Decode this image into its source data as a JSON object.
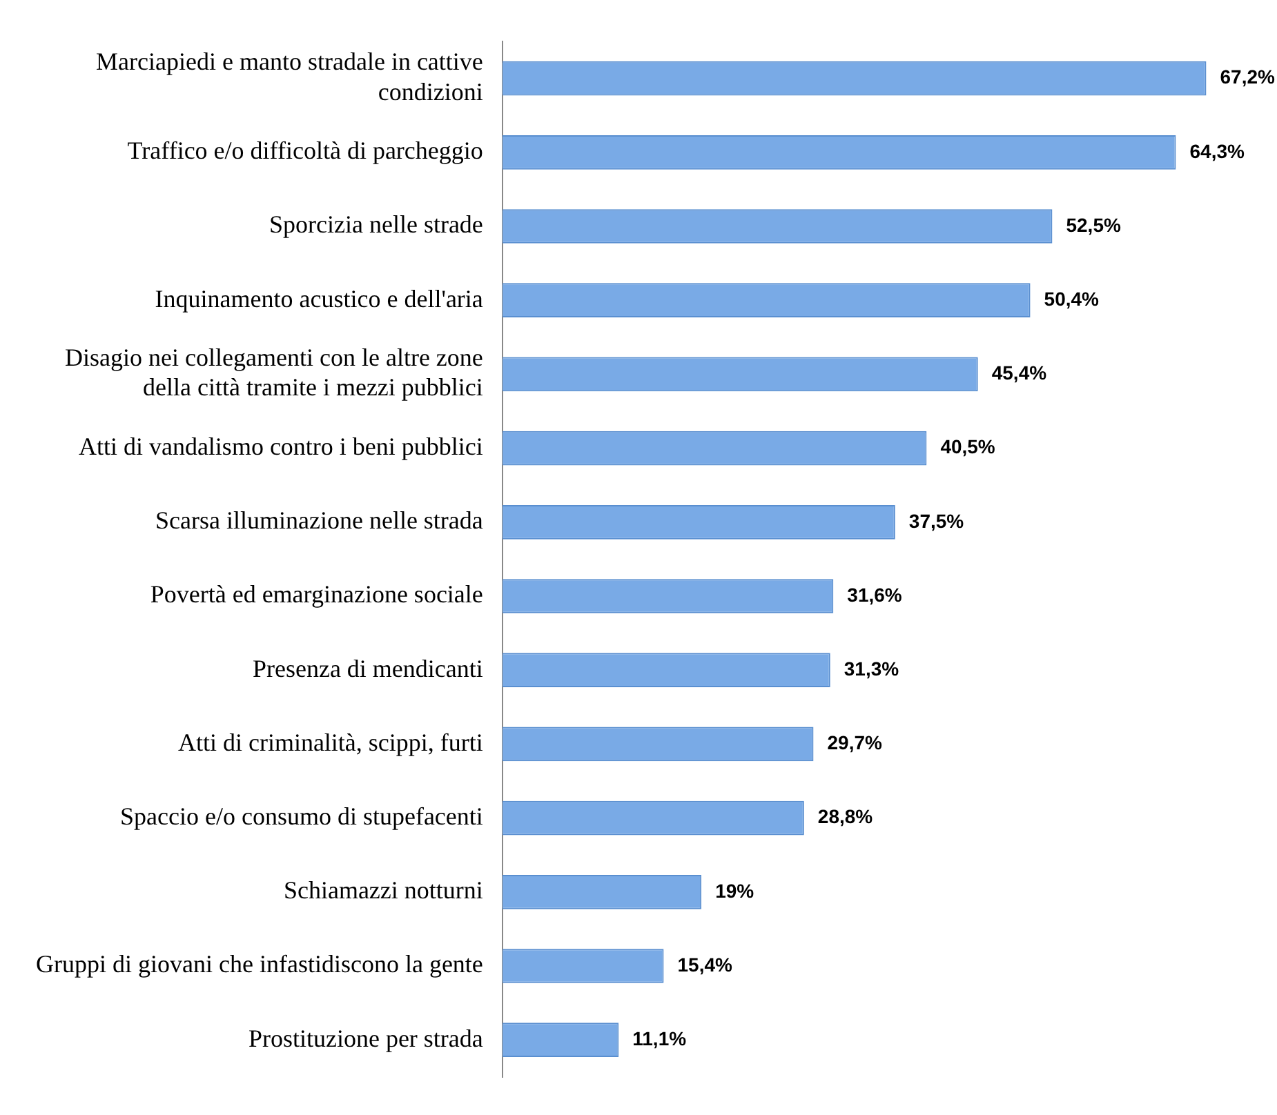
{
  "chart_data": {
    "type": "bar",
    "orientation": "horizontal",
    "categories": [
      "Marciapiedi e manto stradale in cattive condizioni",
      "Traffico e/o difficoltà di parcheggio",
      "Sporcizia nelle strade",
      "Inquinamento acustico e dell'aria",
      "Disagio nei collegamenti con le altre zone della città tramite i mezzi pubblici",
      "Atti di vandalismo contro i beni pubblici",
      "Scarsa illuminazione nelle strada",
      "Povertà ed emarginazione sociale",
      "Presenza di mendicanti",
      "Atti di criminalità, scippi, furti",
      "Spaccio e/o consumo di stupefacenti",
      "Schiamazzi notturni",
      "Gruppi di giovani che infastidiscono la gente",
      "Prostituzione per strada"
    ],
    "values": [
      67.2,
      64.3,
      52.5,
      50.4,
      45.4,
      40.5,
      37.5,
      31.6,
      31.3,
      29.7,
      28.8,
      19,
      15.4,
      11.1
    ],
    "value_labels": [
      "67,2%",
      "64,3%",
      "52,5%",
      "50,4%",
      "45,4%",
      "40,5%",
      "37,5%",
      "31,6%",
      "31,3%",
      "29,7%",
      "28,8%",
      "19%",
      "15,4%",
      "11,1%"
    ],
    "color": "#79aae6",
    "legend": false,
    "tick_labels": "y"
  }
}
